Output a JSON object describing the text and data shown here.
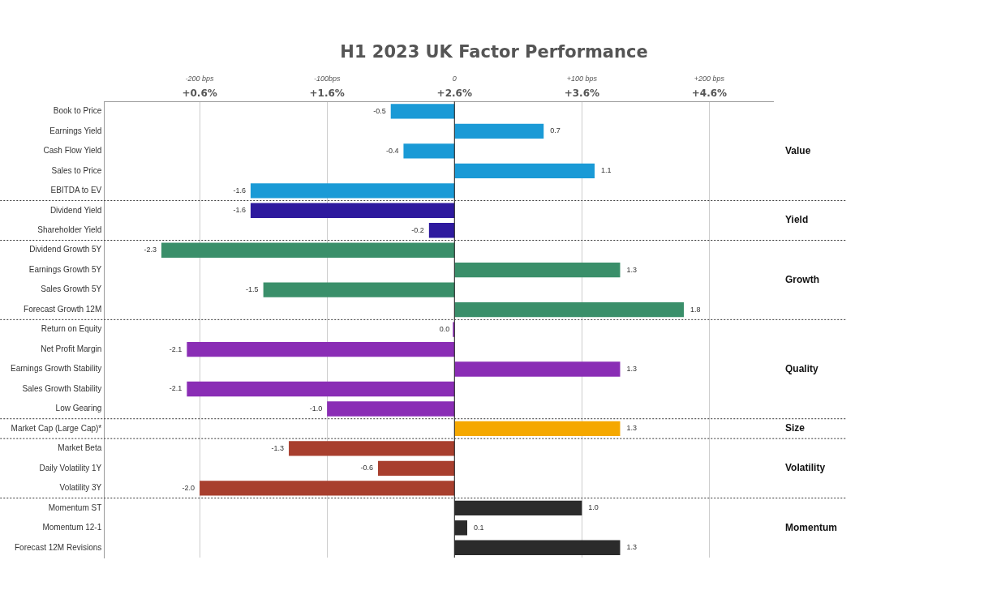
{
  "chart_data": {
    "type": "bar",
    "orientation": "horizontal",
    "title": "H1 2023 UK Factor Performance",
    "categories": [
      "Book to Price",
      "Earnings Yield",
      "Cash Flow Yield",
      "Sales to Price",
      "EBITDA to EV",
      "Dividend Yield",
      "Shareholder Yield",
      "Dividend Growth 5Y",
      "Earnings Growth 5Y",
      "Sales Growth 5Y",
      "Forecast Growth 12M",
      "Return on Equity",
      "Net Profit Margin",
      "Earnings Growth Stability",
      "Sales Growth Stability",
      "Low Gearing",
      "Market Cap (Large Cap)*",
      "Market Beta",
      "Daily Volatility 1Y",
      "Volatility 3Y",
      "Momentum ST",
      "Momentum 12-1",
      "Forecast 12M Revisions"
    ],
    "values": [
      -0.5,
      0.7,
      -0.4,
      1.1,
      -1.6,
      -1.6,
      -0.2,
      -2.3,
      1.3,
      -1.5,
      1.8,
      0.0,
      -2.1,
      1.3,
      -2.1,
      -1.0,
      1.3,
      -1.3,
      -0.6,
      -2.0,
      1.0,
      0.1,
      1.3
    ],
    "value_labels": [
      "-0.5",
      "0.7",
      "-0.4",
      "1.1",
      "-1.6",
      "-1.6",
      "-0.2",
      "-2.3",
      "1.3",
      "-1.5",
      "1.8",
      "0.0",
      "-2.1",
      "1.3",
      "-2.1",
      "-1.0",
      "1.3",
      "-1.3",
      "-0.6",
      "-2.0",
      "1.0",
      "0.1",
      "1.3"
    ],
    "colors": [
      "#1a9ad6",
      "#1a9ad6",
      "#1a9ad6",
      "#1a9ad6",
      "#1a9ad6",
      "#2e1a9e",
      "#2e1a9e",
      "#3a8f6a",
      "#3a8f6a",
      "#3a8f6a",
      "#3a8f6a",
      "#8a2db5",
      "#8a2db5",
      "#8a2db5",
      "#8a2db5",
      "#8a2db5",
      "#f5a800",
      "#a83f2e",
      "#a83f2e",
      "#a83f2e",
      "#2b2b2b",
      "#2b2b2b",
      "#2b2b2b"
    ],
    "base": [
      2.6,
      2.6,
      2.6,
      2.6,
      2.6,
      2.6,
      2.6,
      2.6,
      2.6,
      2.6,
      2.6,
      2.6,
      2.6,
      2.6,
      2.6,
      2.6,
      2.6,
      2.6,
      2.6,
      2.6,
      2.6,
      2.6,
      2.6
    ],
    "xlim": [
      -0.15,
      5.1
    ],
    "xticks": [
      {
        "value": 0.6,
        "label": "+0.6%"
      },
      {
        "value": 1.6,
        "label": "+1.6%"
      },
      {
        "value": 2.6,
        "label": "+2.6%"
      },
      {
        "value": 3.6,
        "label": "+3.6%"
      },
      {
        "value": 4.6,
        "label": "+4.6%"
      }
    ],
    "x2lim": [
      -275,
      250
    ],
    "x2ticks": [
      {
        "value": -200,
        "label": "-200 bps"
      },
      {
        "value": -100,
        "label": "-100bps"
      },
      0,
      {
        "value": 100,
        "label": "+100 bps"
      },
      {
        "value": 200,
        "label": "+200 bps"
      }
    ],
    "grid": "x",
    "annotations": [
      "Value",
      "Yield",
      "Growth",
      "Quality",
      "Size",
      "Volatility",
      "Momentum"
    ]
  }
}
